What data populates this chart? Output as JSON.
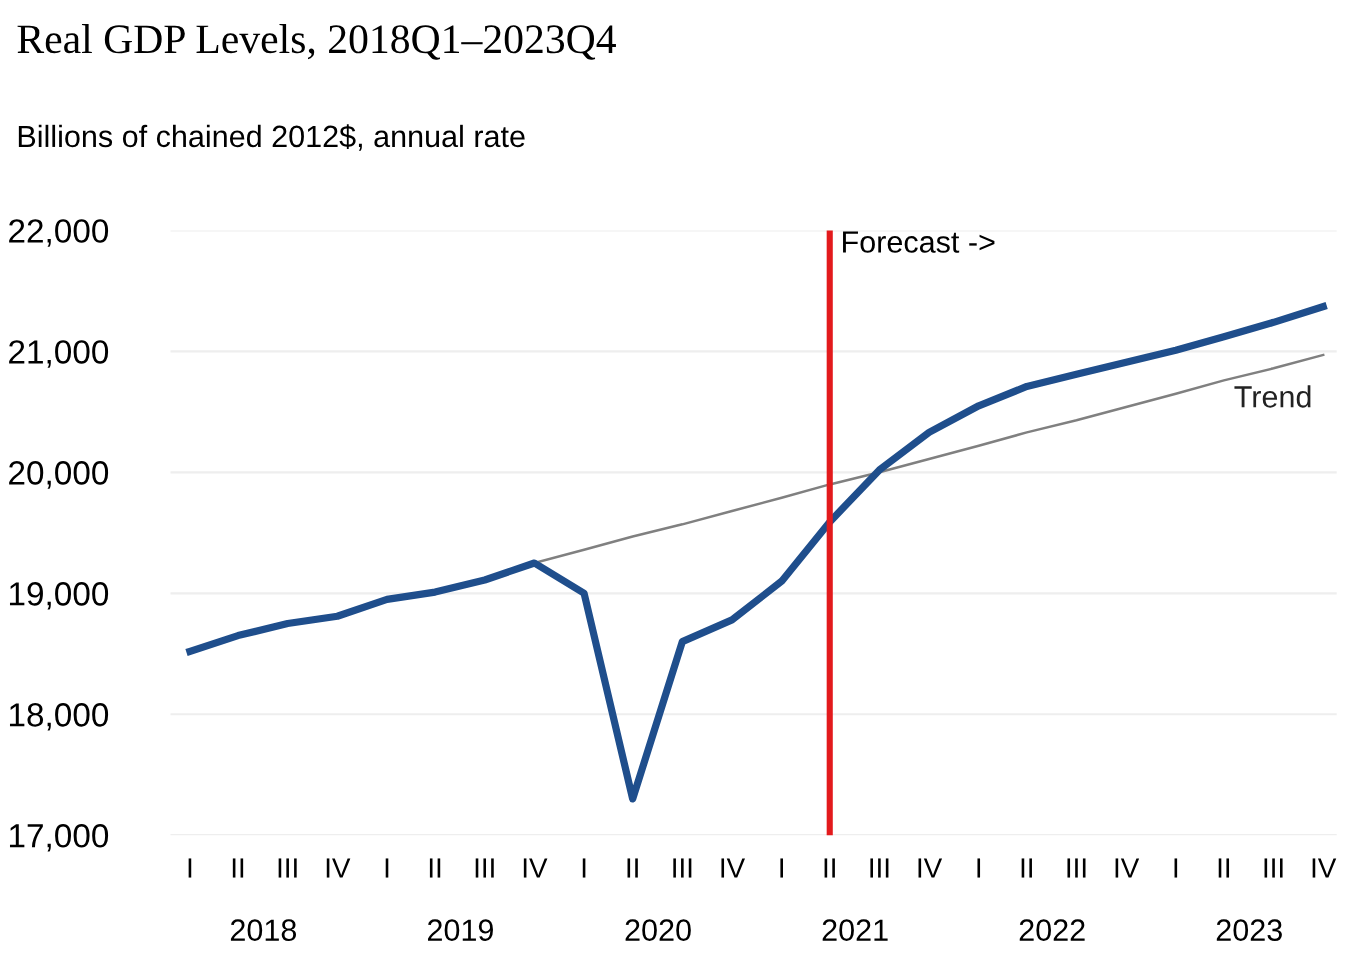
{
  "chart_data": {
    "type": "line",
    "title": "Real GDP Levels, 2018Q1–2023Q4",
    "ylabel": "Billions of chained 2012$, annual rate",
    "x": [
      "2018-02-15",
      "2018-05-15",
      "2018-08-15",
      "2018-11-15",
      "2019-02-15",
      "2019-05-15",
      "2019-08-15",
      "2019-11-15",
      "2020-02-15",
      "2020-05-15",
      "2020-08-15",
      "2020-11-15",
      "2021-02-15",
      "2021-05-15",
      "2021-08-15",
      "2021-11-15",
      "2022-02-15",
      "2022-05-15",
      "2022-08-15",
      "2022-11-15",
      "2023-02-15",
      "2023-05-15",
      "2023-08-15",
      "2023-11-15"
    ],
    "series": [
      {
        "color": "#1f4e8c",
        "values": [
          18520,
          18650,
          18750,
          18810,
          18950,
          19010,
          19110,
          19250,
          19000,
          17300,
          18600,
          18780,
          19100,
          19590,
          20020,
          20330,
          20550,
          20710,
          20810,
          20910,
          21010,
          21120,
          21240,
          21370
        ]
      },
      {
        "name": "Trend",
        "color": "#808080",
        "x": [
          "2019-11-15",
          "2020-02-15",
          "2020-05-15",
          "2020-08-15",
          "2020-11-15",
          "2021-02-15",
          "2021-05-15",
          "2021-08-15",
          "2021-11-15",
          "2022-02-15",
          "2022-05-15",
          "2022-08-15",
          "2022-11-15",
          "2023-02-15",
          "2023-05-15",
          "2023-08-15",
          "2023-11-15"
        ],
        "values": [
          19250,
          19360,
          19470,
          19570,
          19680,
          19790,
          19900,
          20000,
          20110,
          20220,
          20330,
          20430,
          20540,
          20650,
          20760,
          20860,
          20970
        ]
      }
    ],
    "ref_lines": [
      {
        "axis": "x",
        "value": "2021-05-15",
        "label": "Forecast ->",
        "color": "#e31a1c"
      }
    ],
    "xlim": [
      "2018-01-10",
      "2023-12-10"
    ],
    "annotations": [
      "I",
      "II",
      "III",
      "IV",
      "I",
      "II",
      "III",
      "IV",
      "I",
      "II",
      "III",
      "IV",
      "I",
      "II",
      "III",
      "IV",
      "I",
      "II",
      "III",
      "IV",
      "I",
      "II",
      "III",
      "IV"
    ],
    "xticks": [
      {
        "value": "2018-07-01",
        "label": "2018"
      },
      {
        "value": "2019-07-01",
        "label": "2019"
      },
      {
        "value": "2020-07-01",
        "label": "2020"
      },
      {
        "value": "2021-07-01",
        "label": "2021"
      },
      {
        "value": "2022-07-01",
        "label": "2022"
      },
      {
        "value": "2023-07-01",
        "label": "2023"
      }
    ],
    "ylim": [
      17000,
      22000
    ],
    "yticks": [
      {
        "value": 17000,
        "label": "17,000"
      },
      {
        "value": 18000,
        "label": "18,000"
      },
      {
        "value": 19000,
        "label": "19,000"
      },
      {
        "value": 20000,
        "label": "20,000"
      },
      {
        "value": 21000,
        "label": "21,000"
      },
      {
        "value": 22000,
        "label": "22,000"
      }
    ],
    "grid": "y",
    "legend": false
  }
}
